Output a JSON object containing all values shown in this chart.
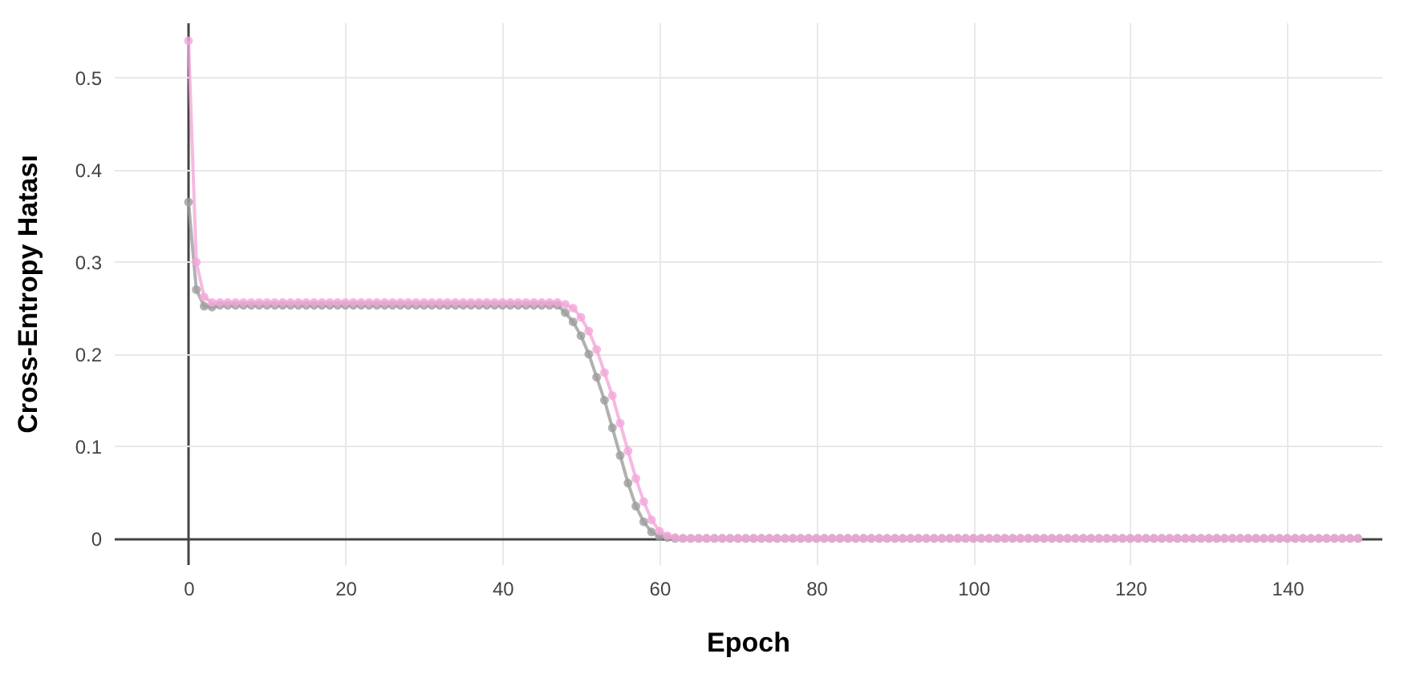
{
  "chart_data": {
    "type": "line",
    "xlabel": "Epoch",
    "ylabel": "Cross-Entropy Hatası",
    "x": [
      0,
      1,
      2,
      3,
      4,
      5,
      6,
      7,
      8,
      9,
      10,
      11,
      12,
      13,
      14,
      15,
      16,
      17,
      18,
      19,
      20,
      21,
      22,
      23,
      24,
      25,
      26,
      27,
      28,
      29,
      30,
      31,
      32,
      33,
      34,
      35,
      36,
      37,
      38,
      39,
      40,
      41,
      42,
      43,
      44,
      45,
      46,
      47,
      48,
      49,
      50,
      51,
      52,
      53,
      54,
      55,
      56,
      57,
      58,
      59,
      60,
      61,
      62,
      63,
      64,
      65,
      66,
      67,
      68,
      69,
      70,
      71,
      72,
      73,
      74,
      75,
      76,
      77,
      78,
      79,
      80,
      81,
      82,
      83,
      84,
      85,
      86,
      87,
      88,
      89,
      90,
      91,
      92,
      93,
      94,
      95,
      96,
      97,
      98,
      99,
      100,
      101,
      102,
      103,
      104,
      105,
      106,
      107,
      108,
      109,
      110,
      111,
      112,
      113,
      114,
      115,
      116,
      117,
      118,
      119,
      120,
      121,
      122,
      123,
      124,
      125,
      126,
      127,
      128,
      129,
      130,
      131,
      132,
      133,
      134,
      135,
      136,
      137,
      138,
      139,
      140,
      141,
      142,
      143,
      144,
      145,
      146,
      147,
      148,
      149
    ],
    "series": [
      {
        "color": "#9e9e9e",
        "values": [
          0.365,
          0.27,
          0.252,
          0.251,
          0.253,
          0.253,
          0.253,
          0.253,
          0.253,
          0.253,
          0.253,
          0.253,
          0.253,
          0.253,
          0.253,
          0.253,
          0.253,
          0.253,
          0.253,
          0.253,
          0.253,
          0.253,
          0.253,
          0.253,
          0.253,
          0.253,
          0.253,
          0.253,
          0.253,
          0.253,
          0.253,
          0.253,
          0.253,
          0.253,
          0.253,
          0.253,
          0.253,
          0.253,
          0.253,
          0.253,
          0.253,
          0.253,
          0.253,
          0.253,
          0.253,
          0.253,
          0.253,
          0.253,
          0.245,
          0.235,
          0.22,
          0.2,
          0.175,
          0.15,
          0.12,
          0.09,
          0.06,
          0.035,
          0.018,
          0.007,
          0.002,
          0.001,
          0,
          0,
          0,
          0,
          0,
          0,
          0,
          0,
          0,
          0,
          0,
          0,
          0,
          0,
          0,
          0,
          0,
          0,
          0,
          0,
          0,
          0,
          0,
          0,
          0,
          0,
          0,
          0,
          0,
          0,
          0,
          0,
          0,
          0,
          0,
          0,
          0,
          0,
          0,
          0,
          0,
          0,
          0,
          0,
          0,
          0,
          0,
          0,
          0,
          0,
          0,
          0,
          0,
          0,
          0,
          0,
          0,
          0,
          0,
          0,
          0,
          0,
          0,
          0,
          0,
          0,
          0,
          0,
          0,
          0,
          0,
          0,
          0,
          0,
          0,
          0,
          0,
          0,
          0,
          0,
          0,
          0,
          0,
          0,
          0,
          0,
          0,
          0
        ]
      },
      {
        "color": "#f2a7d9",
        "values": [
          0.54,
          0.3,
          0.262,
          0.256,
          0.256,
          0.256,
          0.256,
          0.256,
          0.256,
          0.256,
          0.256,
          0.256,
          0.256,
          0.256,
          0.256,
          0.256,
          0.256,
          0.256,
          0.256,
          0.256,
          0.256,
          0.256,
          0.256,
          0.256,
          0.256,
          0.256,
          0.256,
          0.256,
          0.256,
          0.256,
          0.256,
          0.256,
          0.256,
          0.256,
          0.256,
          0.256,
          0.256,
          0.256,
          0.256,
          0.256,
          0.256,
          0.256,
          0.256,
          0.256,
          0.256,
          0.256,
          0.256,
          0.256,
          0.254,
          0.25,
          0.24,
          0.225,
          0.205,
          0.18,
          0.155,
          0.125,
          0.095,
          0.065,
          0.04,
          0.02,
          0.008,
          0.003,
          0.001,
          0,
          0,
          0,
          0,
          0,
          0,
          0,
          0,
          0,
          0,
          0,
          0,
          0,
          0,
          0,
          0,
          0,
          0,
          0,
          0,
          0,
          0,
          0,
          0,
          0,
          0,
          0,
          0,
          0,
          0,
          0,
          0,
          0,
          0,
          0,
          0,
          0,
          0,
          0,
          0,
          0,
          0,
          0,
          0,
          0,
          0,
          0,
          0,
          0,
          0,
          0,
          0,
          0,
          0,
          0,
          0,
          0,
          0,
          0,
          0,
          0,
          0,
          0,
          0,
          0,
          0,
          0,
          0,
          0,
          0,
          0,
          0,
          0,
          0,
          0,
          0,
          0,
          0,
          0,
          0,
          0,
          0,
          0,
          0,
          0,
          0,
          0
        ]
      }
    ],
    "xlim": [
      -9.5,
      152
    ],
    "ylim": [
      -0.028,
      0.56
    ],
    "xticks": [
      0,
      20,
      40,
      60,
      80,
      100,
      120,
      140
    ],
    "yticks": [
      0,
      0.1,
      0.2,
      0.3,
      0.4,
      0.5
    ],
    "grid": true,
    "marker": "circle",
    "line_style": "solid",
    "legend": false
  }
}
